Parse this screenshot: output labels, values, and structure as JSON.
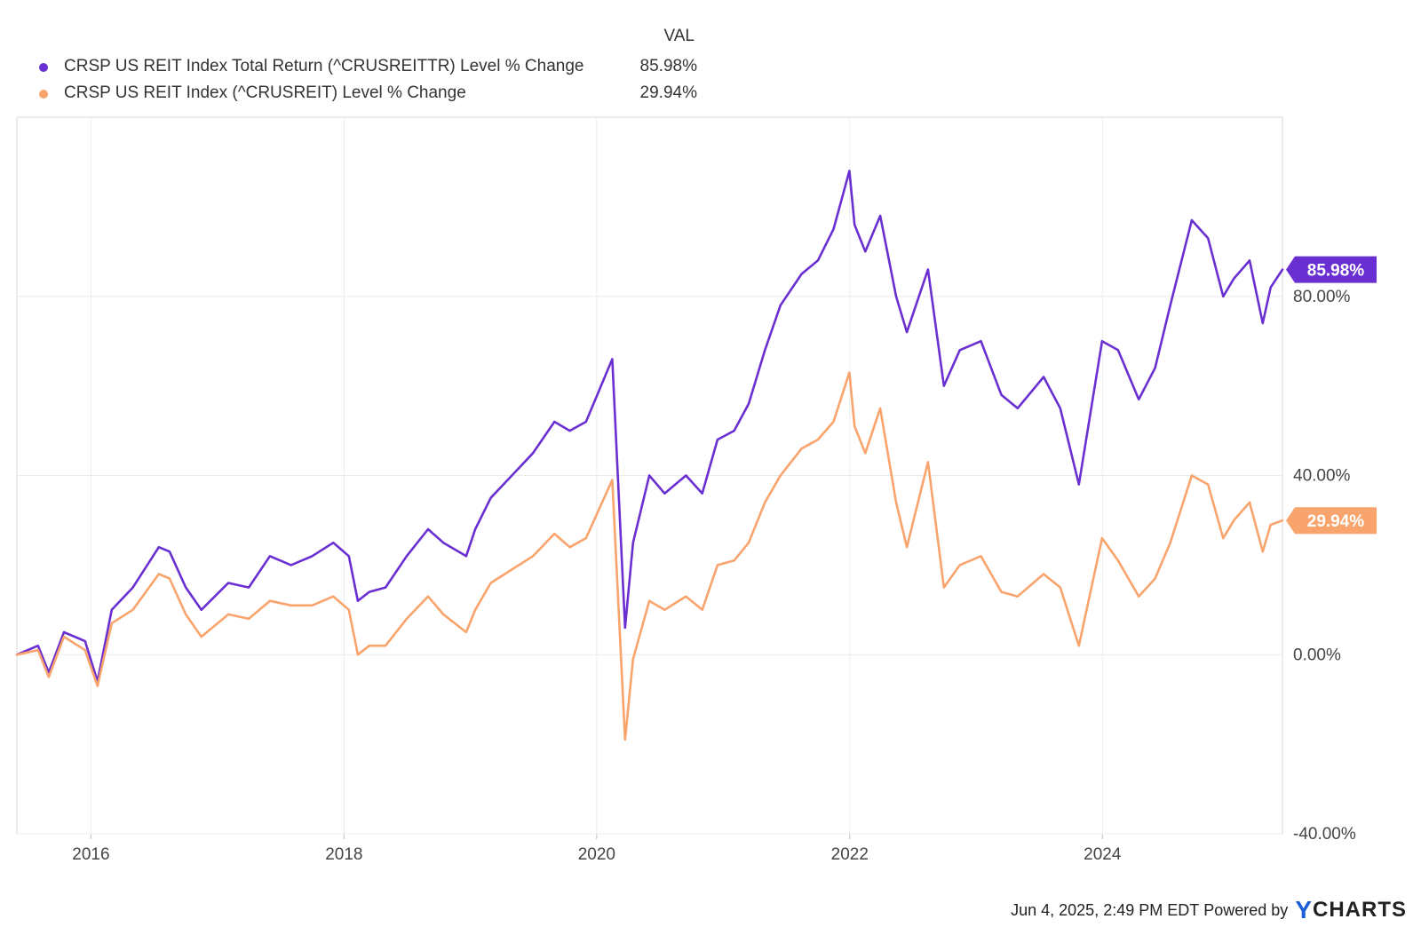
{
  "legend": {
    "header": "VAL",
    "entries": [
      {
        "name": "CRSP US REIT Index Total Return (^CRUSREITTR) Level % Change",
        "value": "85.98%",
        "color": "#6a2fd1"
      },
      {
        "name": "CRSP US REIT Index (^CRUSREIT) Level % Change",
        "value": "29.94%",
        "color": "#f8a46c"
      }
    ]
  },
  "footer": {
    "timestamp": "Jun 4, 2025, 2:49 PM EDT",
    "powered": "Powered by",
    "brand_y": "Y",
    "brand_rest": "CHARTS"
  },
  "chart_data": {
    "type": "line",
    "title": "",
    "xlabel": "",
    "ylabel": "",
    "x_ticks": [
      "2016",
      "2018",
      "2020",
      "2022",
      "2024"
    ],
    "y_ticks": [
      "-40.00%",
      "0.00%",
      "40.00%",
      "80.00%"
    ],
    "xlim": [
      "2015-06-01",
      "2025-06-04"
    ],
    "ylim": [
      -40,
      120
    ],
    "grid": true,
    "legend_position": "top-left",
    "series": [
      {
        "name": "CRSP US REIT Index Total Return (^CRUSREITTR) Level % Change",
        "color": "#6a2fd1",
        "end_label": "85.98%",
        "points": [
          [
            "2015-06-01",
            0
          ],
          [
            "2015-08-01",
            2
          ],
          [
            "2015-09-01",
            -4
          ],
          [
            "2015-10-15",
            5
          ],
          [
            "2015-12-15",
            3
          ],
          [
            "2016-01-20",
            -6
          ],
          [
            "2016-03-01",
            10
          ],
          [
            "2016-05-01",
            15
          ],
          [
            "2016-07-15",
            24
          ],
          [
            "2016-08-15",
            23
          ],
          [
            "2016-10-01",
            15
          ],
          [
            "2016-11-15",
            10
          ],
          [
            "2017-02-01",
            16
          ],
          [
            "2017-04-01",
            15
          ],
          [
            "2017-06-01",
            22
          ],
          [
            "2017-08-01",
            20
          ],
          [
            "2017-10-01",
            22
          ],
          [
            "2017-12-01",
            25
          ],
          [
            "2018-01-15",
            22
          ],
          [
            "2018-02-10",
            12
          ],
          [
            "2018-03-15",
            14
          ],
          [
            "2018-05-01",
            15
          ],
          [
            "2018-07-01",
            22
          ],
          [
            "2018-09-01",
            28
          ],
          [
            "2018-10-15",
            25
          ],
          [
            "2018-12-20",
            22
          ],
          [
            "2019-01-15",
            28
          ],
          [
            "2019-03-01",
            35
          ],
          [
            "2019-05-01",
            40
          ],
          [
            "2019-07-01",
            45
          ],
          [
            "2019-09-01",
            52
          ],
          [
            "2019-10-15",
            50
          ],
          [
            "2019-12-01",
            52
          ],
          [
            "2020-02-15",
            66
          ],
          [
            "2020-03-23",
            6
          ],
          [
            "2020-04-15",
            25
          ],
          [
            "2020-06-01",
            40
          ],
          [
            "2020-07-15",
            36
          ],
          [
            "2020-09-15",
            40
          ],
          [
            "2020-11-01",
            36
          ],
          [
            "2020-12-15",
            48
          ],
          [
            "2021-02-01",
            50
          ],
          [
            "2021-03-15",
            56
          ],
          [
            "2021-05-01",
            68
          ],
          [
            "2021-06-15",
            78
          ],
          [
            "2021-08-15",
            85
          ],
          [
            "2021-10-01",
            88
          ],
          [
            "2021-11-15",
            95
          ],
          [
            "2021-12-31",
            108
          ],
          [
            "2022-01-15",
            96
          ],
          [
            "2022-02-15",
            90
          ],
          [
            "2022-03-30",
            98
          ],
          [
            "2022-05-15",
            80
          ],
          [
            "2022-06-15",
            72
          ],
          [
            "2022-08-15",
            86
          ],
          [
            "2022-09-30",
            60
          ],
          [
            "2022-11-15",
            68
          ],
          [
            "2023-01-15",
            70
          ],
          [
            "2023-03-15",
            58
          ],
          [
            "2023-05-01",
            55
          ],
          [
            "2023-07-15",
            62
          ],
          [
            "2023-09-01",
            55
          ],
          [
            "2023-10-25",
            38
          ],
          [
            "2023-12-31",
            70
          ],
          [
            "2024-02-15",
            68
          ],
          [
            "2024-04-15",
            57
          ],
          [
            "2024-06-01",
            64
          ],
          [
            "2024-07-15",
            78
          ],
          [
            "2024-09-15",
            97
          ],
          [
            "2024-11-01",
            93
          ],
          [
            "2024-12-15",
            80
          ],
          [
            "2025-01-15",
            84
          ],
          [
            "2025-03-01",
            88
          ],
          [
            "2025-04-08",
            74
          ],
          [
            "2025-05-01",
            82
          ],
          [
            "2025-06-04",
            85.98
          ]
        ]
      },
      {
        "name": "CRSP US REIT Index (^CRUSREIT) Level % Change",
        "color": "#f8a46c",
        "end_label": "29.94%",
        "points": [
          [
            "2015-06-01",
            0
          ],
          [
            "2015-08-01",
            1
          ],
          [
            "2015-09-01",
            -5
          ],
          [
            "2015-10-15",
            4
          ],
          [
            "2015-12-15",
            1
          ],
          [
            "2016-01-20",
            -7
          ],
          [
            "2016-03-01",
            7
          ],
          [
            "2016-05-01",
            10
          ],
          [
            "2016-07-15",
            18
          ],
          [
            "2016-08-15",
            17
          ],
          [
            "2016-10-01",
            9
          ],
          [
            "2016-11-15",
            4
          ],
          [
            "2017-02-01",
            9
          ],
          [
            "2017-04-01",
            8
          ],
          [
            "2017-06-01",
            12
          ],
          [
            "2017-08-01",
            11
          ],
          [
            "2017-10-01",
            11
          ],
          [
            "2017-12-01",
            13
          ],
          [
            "2018-01-15",
            10
          ],
          [
            "2018-02-10",
            0
          ],
          [
            "2018-03-15",
            2
          ],
          [
            "2018-05-01",
            2
          ],
          [
            "2018-07-01",
            8
          ],
          [
            "2018-09-01",
            13
          ],
          [
            "2018-10-15",
            9
          ],
          [
            "2018-12-20",
            5
          ],
          [
            "2019-01-15",
            10
          ],
          [
            "2019-03-01",
            16
          ],
          [
            "2019-05-01",
            19
          ],
          [
            "2019-07-01",
            22
          ],
          [
            "2019-09-01",
            27
          ],
          [
            "2019-10-15",
            24
          ],
          [
            "2019-12-01",
            26
          ],
          [
            "2020-02-15",
            39
          ],
          [
            "2020-03-23",
            -19
          ],
          [
            "2020-04-15",
            -1
          ],
          [
            "2020-06-01",
            12
          ],
          [
            "2020-07-15",
            10
          ],
          [
            "2020-09-15",
            13
          ],
          [
            "2020-11-01",
            10
          ],
          [
            "2020-12-15",
            20
          ],
          [
            "2021-02-01",
            21
          ],
          [
            "2021-03-15",
            25
          ],
          [
            "2021-05-01",
            34
          ],
          [
            "2021-06-15",
            40
          ],
          [
            "2021-08-15",
            46
          ],
          [
            "2021-10-01",
            48
          ],
          [
            "2021-11-15",
            52
          ],
          [
            "2021-12-31",
            63
          ],
          [
            "2022-01-15",
            51
          ],
          [
            "2022-02-15",
            45
          ],
          [
            "2022-03-30",
            55
          ],
          [
            "2022-05-15",
            34
          ],
          [
            "2022-06-15",
            24
          ],
          [
            "2022-08-15",
            43
          ],
          [
            "2022-09-30",
            15
          ],
          [
            "2022-11-15",
            20
          ],
          [
            "2023-01-15",
            22
          ],
          [
            "2023-03-15",
            14
          ],
          [
            "2023-05-01",
            13
          ],
          [
            "2023-07-15",
            18
          ],
          [
            "2023-09-01",
            15
          ],
          [
            "2023-10-25",
            2
          ],
          [
            "2023-12-31",
            26
          ],
          [
            "2024-02-15",
            21
          ],
          [
            "2024-04-15",
            13
          ],
          [
            "2024-06-01",
            17
          ],
          [
            "2024-07-15",
            25
          ],
          [
            "2024-09-15",
            40
          ],
          [
            "2024-11-01",
            38
          ],
          [
            "2024-12-15",
            26
          ],
          [
            "2025-01-15",
            30
          ],
          [
            "2025-03-01",
            34
          ],
          [
            "2025-04-08",
            23
          ],
          [
            "2025-05-01",
            29
          ],
          [
            "2025-06-04",
            29.94
          ]
        ]
      }
    ]
  }
}
